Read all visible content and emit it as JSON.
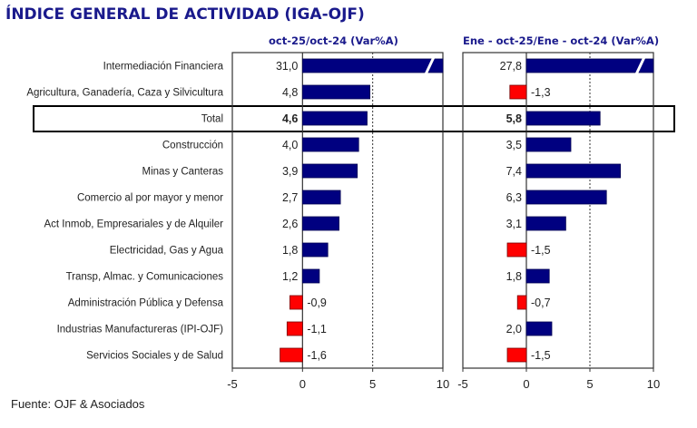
{
  "title": "ÍNDICE GENERAL DE ACTIVIDAD (IGA-OJF)",
  "source": "Fuente: OJF & Asociados",
  "colors": {
    "positive": "#000080",
    "negative": "#ff0000",
    "title": "#1a1a8c",
    "highlight_border": "#000000"
  },
  "chart_data": [
    {
      "type": "bar",
      "orientation": "horizontal",
      "title": "oct-25/oct-24 (Var%A)",
      "categories": [
        "Intermediación Financiera",
        "Agricultura, Ganadería, Caza y Silvicultura",
        "Total",
        "Construcción",
        "Minas y Canteras",
        "Comercio al por mayor y menor",
        "Act Inmob, Empresariales y de Alquiler",
        "Electricidad, Gas y Agua",
        "Transp, Almac. y Comunicaciones",
        "Administración Pública y Defensa",
        "Industrias Manufactureras (IPI-OJF)",
        "Servicios Sociales y de Salud"
      ],
      "values": [
        31.0,
        4.8,
        4.6,
        4.0,
        3.9,
        2.7,
        2.6,
        1.8,
        1.2,
        -0.9,
        -1.1,
        -1.6
      ],
      "labels": [
        "31,0",
        "4,8",
        "4,6",
        "4,0",
        "3,9",
        "2,7",
        "2,6",
        "1,8",
        "1,2",
        "-0,9",
        "-1,1",
        "-1,6"
      ],
      "xlim": [
        -5,
        10
      ],
      "xticks": [
        "-5",
        "0",
        "5",
        "10"
      ],
      "gridlines": [
        5
      ],
      "truncated": [
        "Intermediación Financiera"
      ],
      "highlighted": "Total"
    },
    {
      "type": "bar",
      "orientation": "horizontal",
      "title": "Ene - oct-25/Ene - oct-24 (Var%A)",
      "categories": [
        "Intermediación Financiera",
        "Agricultura, Ganadería, Caza y Silvicultura",
        "Total",
        "Construcción",
        "Minas y Canteras",
        "Comercio al por mayor y menor",
        "Act Inmob, Empresariales y de Alquiler",
        "Electricidad, Gas y Agua",
        "Transp, Almac. y Comunicaciones",
        "Administración Pública y Defensa",
        "Industrias Manufactureras (IPI-OJF)",
        "Servicios Sociales y de Salud"
      ],
      "values": [
        27.8,
        -1.3,
        5.8,
        3.5,
        7.4,
        6.3,
        3.1,
        -1.5,
        1.8,
        -0.7,
        2.0,
        -1.5
      ],
      "labels": [
        "27,8",
        "-1,3",
        "5,8",
        "3,5",
        "7,4",
        "6,3",
        "3,1",
        "-1,5",
        "1,8",
        "-0,7",
        "2,0",
        "-1,5"
      ],
      "xlim": [
        -5,
        10
      ],
      "xticks": [
        "-5",
        "0",
        "5",
        "10"
      ],
      "gridlines": [
        5
      ],
      "truncated": [
        "Intermediación Financiera"
      ],
      "highlighted": "Total"
    }
  ]
}
